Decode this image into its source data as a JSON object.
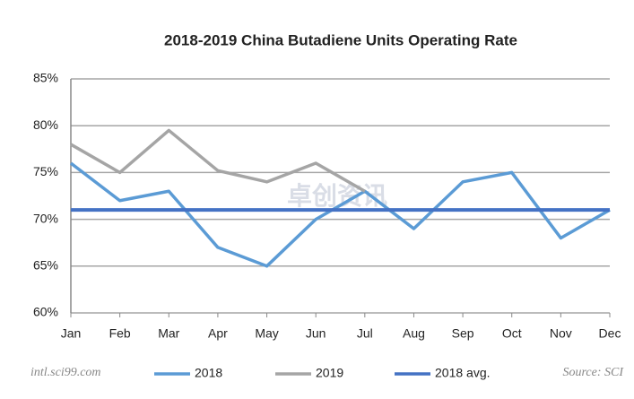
{
  "chart_data": {
    "type": "line",
    "title": "2018-2019 China Butadiene Units Operating Rate",
    "categories": [
      "Jan",
      "Feb",
      "Mar",
      "Apr",
      "May",
      "Jun",
      "Jul",
      "Aug",
      "Sep",
      "Oct",
      "Nov",
      "Dec"
    ],
    "series": [
      {
        "name": "2018",
        "color": "#5b9bd5",
        "values": [
          76,
          72,
          73,
          67,
          65,
          70,
          73,
          69,
          74,
          75,
          68,
          71
        ]
      },
      {
        "name": "2019",
        "color": "#a5a5a5",
        "values": [
          78,
          75,
          79.5,
          75.2,
          74,
          76,
          73,
          null,
          null,
          null,
          null,
          null
        ]
      },
      {
        "name": "2018 avg.",
        "color": "#4472c4",
        "values": [
          71,
          71,
          71,
          71,
          71,
          71,
          71,
          71,
          71,
          71,
          71,
          71
        ]
      }
    ],
    "ylim": [
      60,
      85
    ],
    "yticks": [
      {
        "value": 60,
        "label": "60%"
      },
      {
        "value": 65,
        "label": "65%"
      },
      {
        "value": 70,
        "label": "70%"
      },
      {
        "value": 75,
        "label": "75%"
      },
      {
        "value": 80,
        "label": "80%"
      },
      {
        "value": 85,
        "label": "85%"
      }
    ],
    "grid": true,
    "legend": "bottom",
    "website": "intl.sci99.com",
    "source": "Source: SCI",
    "watermark": "卓创资讯"
  }
}
